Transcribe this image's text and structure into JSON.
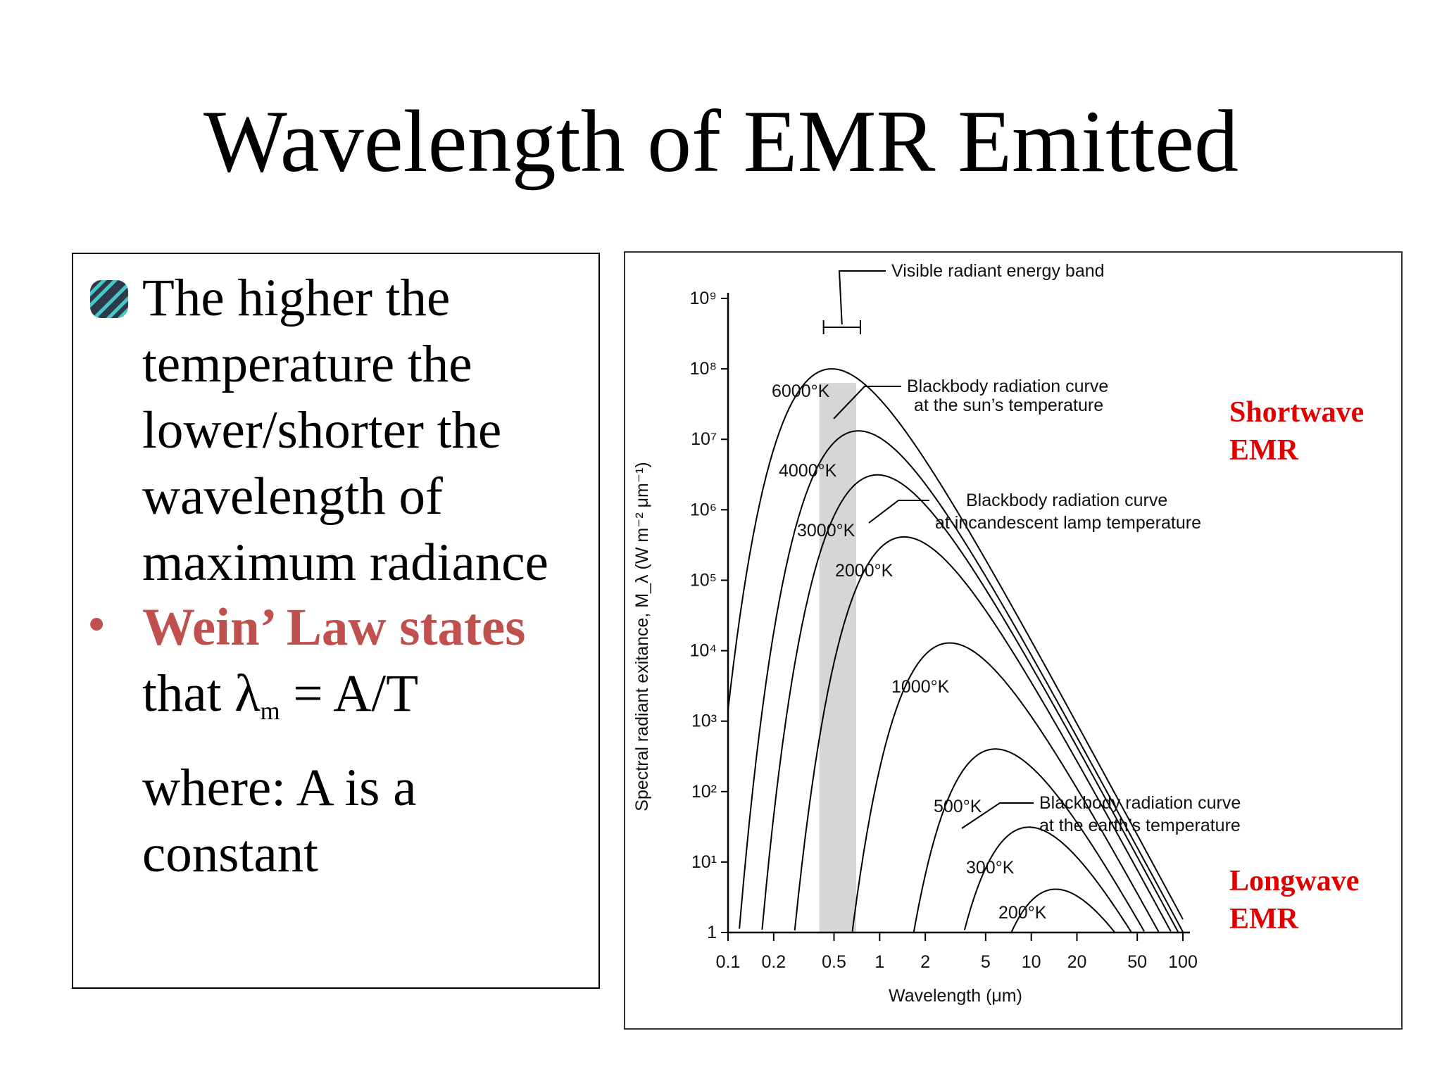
{
  "slide": {
    "title": "Wavelength of EMR Emitted",
    "bullet1_lines": [
      "The higher the",
      "temperature the",
      "lower/shorter the",
      "wavelength of",
      "maximum radiance"
    ],
    "bullet2_dot": "•",
    "bullet2_bold": "Wein’ Law states",
    "bullet2_line2_prefix": "that λ",
    "bullet2_line2_subscript": "m",
    "bullet2_line2_suffix": " = A/T",
    "where_lines": [
      "where: A is a",
      "constant"
    ],
    "shortwave_label": [
      "Shortwave",
      "EMR"
    ],
    "longwave_label": [
      "Longwave",
      "EMR"
    ],
    "colors": {
      "accent_red": "#c0504d",
      "label_red": "#e00000"
    },
    "icons": {
      "bullet": "striped-square-bullet-icon"
    }
  },
  "chart_data": {
    "type": "line",
    "xlabel": "Wavelength (μm)",
    "ylabel": "Spectral radiant exitance, M_λ (W m⁻² μm⁻¹)",
    "x_scale": "log",
    "y_scale": "log",
    "xlim": [
      0.1,
      100
    ],
    "ylim": [
      1,
      1000000000
    ],
    "x_ticks": [
      "0.1",
      "0.2",
      "0.5",
      "1",
      "2",
      "5",
      "10",
      "20",
      "50",
      "100"
    ],
    "y_ticks": [
      "1",
      "10¹",
      "10²",
      "10³",
      "10⁴",
      "10⁵",
      "10⁶",
      "10⁷",
      "10⁸",
      "10⁹"
    ],
    "visible_band": {
      "label": "Visible radiant energy band",
      "from": 0.4,
      "to": 0.7
    },
    "series": [
      {
        "name": "6000°K",
        "temperature_K": 6000
      },
      {
        "name": "4000°K",
        "temperature_K": 4000
      },
      {
        "name": "3000°K",
        "temperature_K": 3000
      },
      {
        "name": "2000°K",
        "temperature_K": 2000
      },
      {
        "name": "1000°K",
        "temperature_K": 1000
      },
      {
        "name": "500°K",
        "temperature_K": 500
      },
      {
        "name": "300°K",
        "temperature_K": 300
      },
      {
        "name": "200°K",
        "temperature_K": 200
      }
    ],
    "annotations": [
      {
        "lines": [
          "Blackbody radiation curve",
          "at the sun’s temperature"
        ],
        "target": "6000°K"
      },
      {
        "lines": [
          "Blackbody radiation curve",
          "at incandescent lamp temperature"
        ],
        "target": "3000°K"
      },
      {
        "lines": [
          "Blackbody radiation curve",
          "at the earth’s temperature"
        ],
        "target": "300°K"
      }
    ]
  }
}
